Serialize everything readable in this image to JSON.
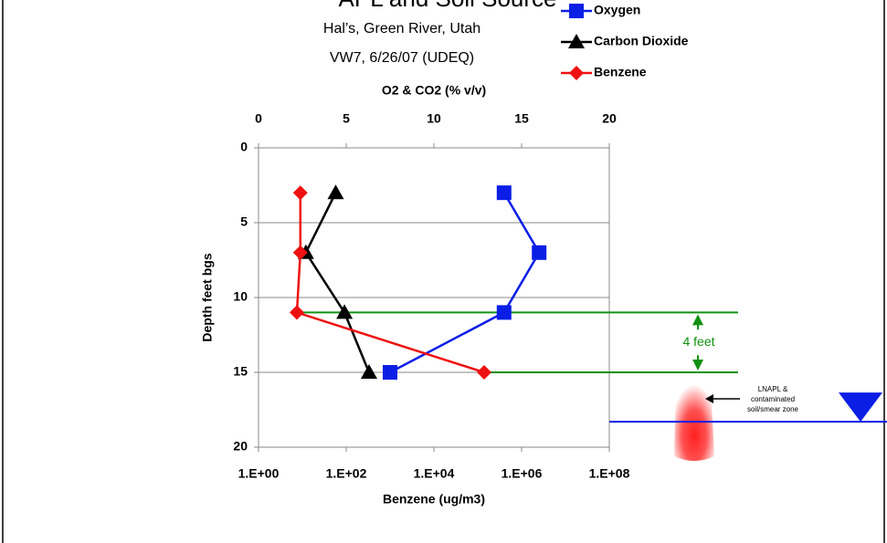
{
  "chart_data": {
    "type": "profile",
    "title": "APL and Soil Source",
    "subtitle": [
      "Hal’s, Green River, Utah",
      "VW7, 6/26/07 (UDEQ)"
    ],
    "x_top_label": "O2 & CO2 (% v/v)",
    "x_bottom_label": "Benzene (ug/m3)",
    "y_label": "Depth feet bgs",
    "depth": [
      3,
      7,
      11,
      15
    ],
    "ylim": [
      0,
      20
    ],
    "yticks": [
      0,
      5,
      10,
      15,
      20
    ],
    "xlim": [
      0,
      20
    ],
    "xticks": [
      0,
      5,
      10,
      15,
      20
    ],
    "x2lim": [
      1,
      100000000
    ],
    "x2log": true,
    "x2ticks": [
      {
        "value": 1,
        "label": "1.E+00"
      },
      {
        "value": 100,
        "label": "1.E+02"
      },
      {
        "value": 10000,
        "label": "1.E+04"
      },
      {
        "value": 1000000,
        "label": "1.E+06"
      },
      {
        "value": 100000000,
        "label": "1.E+08"
      }
    ],
    "grid": true,
    "series": [
      {
        "name": "Oxygen",
        "color": "#0a1ee6",
        "marker": "square",
        "values": [
          14,
          16,
          14,
          7.5
        ]
      },
      {
        "name": "Carbon Dioxide",
        "color": "#000000",
        "marker": "triangle",
        "values": [
          4.4,
          2.7,
          4.9,
          6.3
        ]
      },
      {
        "name": "Benzene",
        "color": "#ee1111",
        "marker": "diamond",
        "axis": "x2",
        "values": [
          9,
          9,
          7.5,
          140000
        ]
      }
    ],
    "annotations": {
      "interval": "4 feet",
      "zone": [
        "LNAPL &",
        "contaminated",
        "soil/smear zone"
      ]
    },
    "zone_lines": [
      11,
      15
    ],
    "water_table_depth": 18.3
  }
}
